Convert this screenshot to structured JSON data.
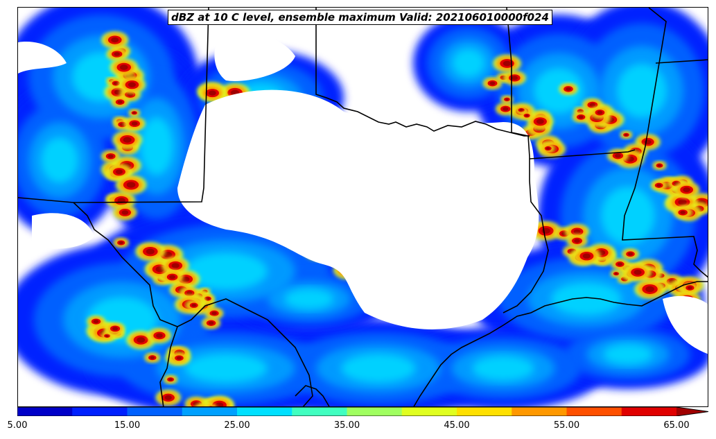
{
  "title": "dBZ at 10 C level, ensemble maximum Valid: 202106010000f024",
  "colorbar": {
    "levels": [
      5,
      10,
      15,
      20,
      25,
      30,
      35,
      40,
      45,
      50,
      55,
      60,
      65,
      70
    ],
    "colors": [
      "#0000c8",
      "#0020ff",
      "#0060ff",
      "#00a0ff",
      "#00e0ff",
      "#40ffc0",
      "#a0ff60",
      "#e0ff20",
      "#ffe000",
      "#ff9800",
      "#ff5000",
      "#e00000",
      "#a00000"
    ],
    "extend": "max",
    "tick_labels": [
      "5.00",
      "15.00",
      "25.00",
      "35.00",
      "45.00",
      "55.00",
      "65.00"
    ]
  },
  "map": {
    "content": "Gridded radar reflectivity over Texas / Oklahoma / Louisiana region with state and coastline boundaries"
  }
}
